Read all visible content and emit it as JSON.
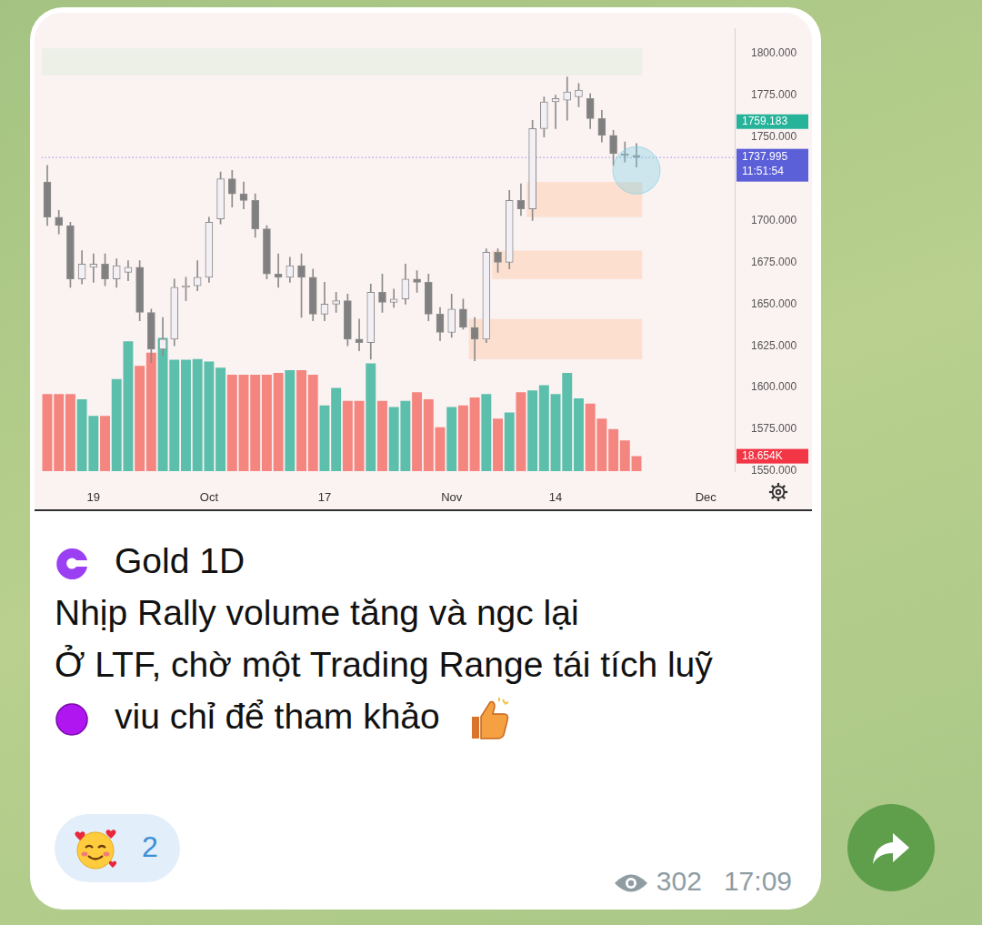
{
  "chart_data": {
    "type": "candlestick",
    "categories": [
      null,
      null,
      null,
      null,
      "19",
      null,
      null,
      null,
      null,
      null,
      null,
      null,
      null,
      null,
      "Oct",
      null,
      null,
      null,
      null,
      null,
      null,
      null,
      null,
      null,
      "17",
      null,
      null,
      null,
      null,
      null,
      null,
      null,
      null,
      null,
      null,
      "Nov",
      null,
      null,
      null,
      null,
      null,
      null,
      null,
      null,
      "14",
      null,
      null,
      null,
      null,
      null,
      null,
      null,
      null,
      null,
      null,
      null,
      null,
      "Dec",
      null,
      null
    ],
    "open": [
      1723,
      1702,
      1697,
      1665,
      1672,
      1674,
      1665,
      1669,
      1672,
      1645,
      1623,
      1629,
      1660,
      1661,
      1666,
      1701,
      1725,
      1716,
      1712,
      1695,
      1668,
      1666,
      1673,
      1666,
      1644,
      1650,
      1652,
      1629,
      1627,
      1657,
      1651,
      1653,
      1665,
      1663,
      1644,
      1633,
      1647,
      1636,
      1629,
      1681,
      1675,
      1712,
      1707,
      1755,
      1771,
      1772,
      1774,
      1773,
      1761,
      1751,
      1740,
      1739,
      null,
      null,
      null,
      null,
      null,
      null,
      null,
      null
    ],
    "high": [
      1733,
      1706,
      1699,
      1682,
      1680,
      1680,
      1677,
      1676,
      1676,
      1647,
      1642,
      1665,
      1666,
      1676,
      1702,
      1729,
      1730,
      1723,
      1716,
      1697,
      1680,
      1678,
      1680,
      1671,
      1663,
      1657,
      1656,
      1641,
      1662,
      1668,
      1659,
      1674,
      1670,
      1668,
      1648,
      1656,
      1653,
      1642,
      1683,
      1683,
      1718,
      1722,
      1760,
      1774,
      1775,
      1786,
      1782,
      1776,
      1766,
      1754,
      1747,
      1746,
      null,
      null,
      null,
      null,
      null,
      null,
      null,
      null
    ],
    "low": [
      1697,
      1692,
      1660,
      1662,
      1663,
      1661,
      1660,
      1664,
      1640,
      1615,
      1619,
      1625,
      1652,
      1658,
      1663,
      1698,
      1708,
      1707,
      1690,
      1665,
      1660,
      1663,
      1642,
      1640,
      1640,
      1645,
      1625,
      1622,
      1617,
      1645,
      1648,
      1650,
      1657,
      1640,
      1628,
      1630,
      1635,
      1616,
      1627,
      1669,
      1671,
      1703,
      1700,
      1750,
      1755,
      1760,
      1768,
      1755,
      1747,
      1733,
      1735,
      1732,
      null,
      null,
      null,
      null,
      null,
      null,
      null,
      null
    ],
    "close": [
      1702,
      1697,
      1665,
      1674,
      1674,
      1665,
      1673,
      1672,
      1645,
      1623,
      1629,
      1660,
      1661,
      1666,
      1699,
      1725,
      1716,
      1712,
      1695,
      1668,
      1666,
      1673,
      1666,
      1644,
      1650,
      1652,
      1629,
      1627,
      1657,
      1651,
      1653,
      1665,
      1663,
      1644,
      1633,
      1647,
      1636,
      1629,
      1681,
      1675,
      1712,
      1707,
      1755,
      1771,
      1773,
      1777,
      1778,
      1761,
      1751,
      1740,
      1739,
      1737.995,
      null,
      null,
      null,
      null,
      null,
      null,
      null,
      null
    ],
    "volume": [
      96.5,
      96.5,
      96.5,
      90.0,
      69.1,
      69.1,
      115.2,
      162.4,
      131.6,
      148.1,
      166.7,
      139.3,
      139.3,
      140.4,
      137.1,
      129.4,
      120.7,
      120.7,
      120.7,
      120.7,
      122.9,
      126.2,
      126.2,
      120.7,
      82.3,
      104.2,
      87.8,
      87.8,
      134.9,
      87.8,
      80.1,
      87.8,
      98.7,
      90.0,
      54.9,
      80.1,
      82.3,
      92.1,
      96.5,
      65.8,
      73.5,
      98.7,
      100.9,
      107.5,
      96.5,
      122.9,
      91.1,
      84.5,
      65.8,
      52.7,
      38.4,
      18.654,
      null,
      null,
      null,
      null,
      null,
      null,
      null,
      null
    ],
    "ylim": [
      1550,
      1815
    ],
    "yticks": [
      {
        "value": 1550,
        "label": "1550.000"
      },
      {
        "value": 1575,
        "label": "1575.000"
      },
      {
        "value": 1600,
        "label": "1600.000"
      },
      {
        "value": 1625,
        "label": "1625.000"
      },
      {
        "value": 1650,
        "label": "1650.000"
      },
      {
        "value": 1675,
        "label": "1675.000"
      },
      {
        "value": 1700,
        "label": "1700.000"
      },
      {
        "value": 1750,
        "label": "1750.000"
      },
      {
        "value": 1775,
        "label": "1775.000"
      },
      {
        "value": 1800,
        "label": "1800.000"
      }
    ],
    "y2lim": [
      0,
      554
    ],
    "grid": false,
    "zones": [
      {
        "x0": 0,
        "x1": 51,
        "y0": 1787,
        "y1": 1803,
        "color": "#e9f0e4"
      },
      {
        "x0": 42,
        "x1": 51,
        "y0": 1702,
        "y1": 1723,
        "color": "#fbdcc9"
      },
      {
        "x0": 39,
        "x1": 51,
        "y0": 1665,
        "y1": 1682,
        "color": "#fbdcc9"
      },
      {
        "x0": 37,
        "x1": 51,
        "y0": 1617,
        "y1": 1641,
        "color": "#fbdcc9"
      }
    ],
    "highlight": {
      "x": 51,
      "y": 1730
    },
    "annotations": [
      {
        "text": "1759.183",
        "y": 1759.183,
        "color": "#26b39a"
      },
      {
        "text": "1737.995",
        "subtext": "11:51:54",
        "y": 1737.995,
        "color": "#5b5fd8",
        "line_style": "dotted"
      },
      {
        "text": "18.654K",
        "y2": 18.654,
        "color": "#f23645"
      }
    ]
  },
  "message": {
    "title": "Gold 1D",
    "lines": [
      "Nhịp Rally volume tăng và ngc lại",
      "Ở LTF, chờ một Trading Range tái tích luỹ",
      "viu chỉ để tham khảo"
    ],
    "reaction_count": 2,
    "views": 302,
    "time": "17:09"
  }
}
